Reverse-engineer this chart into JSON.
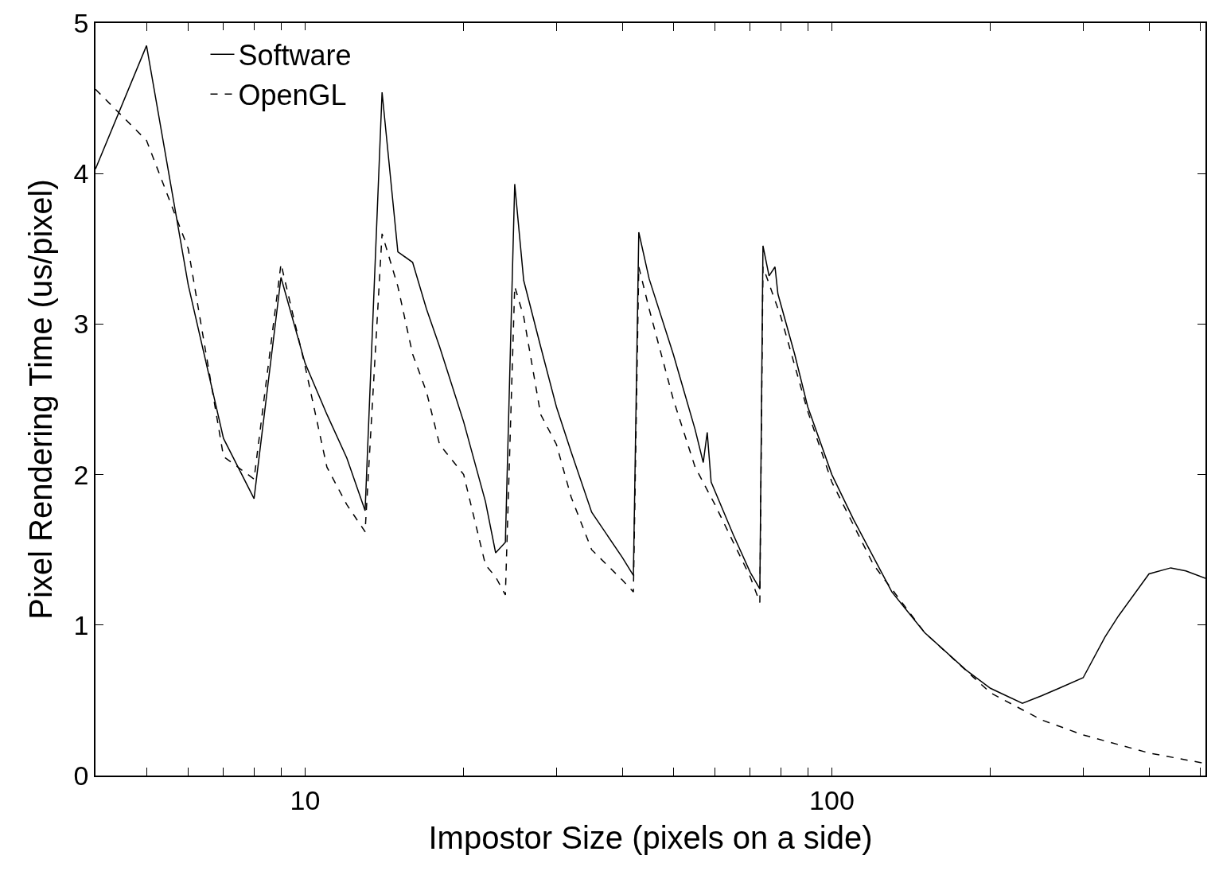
{
  "chart_data": {
    "type": "line",
    "xlabel": "Impostor Size (pixels on a side)",
    "ylabel": "Pixel Rendering Time (us/pixel)",
    "log": "x",
    "legend": "top left",
    "marker": "none",
    "xlim": [
      4,
      512
    ],
    "ylim": [
      0,
      5
    ],
    "xticks": [
      {
        "value": 4,
        "label": null
      },
      {
        "value": 5,
        "label": null
      },
      {
        "value": 6,
        "label": null
      },
      {
        "value": 7,
        "label": null
      },
      {
        "value": 8,
        "label": null
      },
      {
        "value": 9,
        "label": null
      },
      10,
      {
        "value": 20,
        "label": null
      },
      {
        "value": 30,
        "label": null
      },
      {
        "value": 40,
        "label": null
      },
      {
        "value": 50,
        "label": null
      },
      {
        "value": 60,
        "label": null
      },
      {
        "value": 70,
        "label": null
      },
      {
        "value": 80,
        "label": null
      },
      {
        "value": 90,
        "label": null
      },
      100,
      {
        "value": 200,
        "label": null
      },
      {
        "value": 300,
        "label": null
      },
      {
        "value": 400,
        "label": null
      },
      {
        "value": 500,
        "label": null
      }
    ],
    "yticks": [
      0,
      1,
      2,
      3,
      4,
      5
    ],
    "series": [
      {
        "name": "Software",
        "color": "#000000",
        "line_style": "solid",
        "x": [
          4,
          5,
          6,
          7,
          8,
          9,
          10,
          11,
          12,
          13,
          14,
          15,
          16,
          17,
          18,
          20,
          22,
          23,
          24,
          25,
          26,
          28,
          30,
          32,
          35,
          40,
          42,
          43,
          45,
          50,
          55,
          57,
          58,
          59,
          65,
          70,
          73,
          74,
          76,
          78,
          79,
          85,
          90,
          100,
          110,
          120,
          130,
          150,
          180,
          200,
          230,
          250,
          270,
          300,
          330,
          350,
          400,
          440,
          470,
          512
        ],
        "values": [
          4.03,
          4.85,
          3.26,
          2.24,
          1.84,
          3.31,
          2.74,
          2.4,
          2.11,
          1.76,
          4.54,
          3.48,
          3.41,
          3.1,
          2.85,
          2.35,
          1.82,
          1.48,
          1.55,
          3.93,
          3.29,
          2.85,
          2.45,
          2.15,
          1.75,
          1.45,
          1.33,
          3.61,
          3.3,
          2.8,
          2.3,
          2.08,
          2.28,
          1.95,
          1.6,
          1.35,
          1.24,
          3.52,
          3.32,
          3.38,
          3.2,
          2.8,
          2.45,
          2.0,
          1.7,
          1.45,
          1.22,
          0.95,
          0.7,
          0.58,
          0.48,
          0.53,
          0.58,
          0.65,
          0.92,
          1.06,
          1.34,
          1.38,
          1.36,
          1.31
        ]
      },
      {
        "name": "OpenGL",
        "color": "#000000",
        "line_style": "dashed",
        "x": [
          4,
          5,
          6,
          7,
          8,
          9,
          10,
          11,
          12,
          13,
          14,
          15,
          16,
          17,
          18,
          20,
          22,
          23,
          24,
          25,
          26,
          28,
          30,
          32,
          35,
          40,
          42,
          43,
          45,
          50,
          55,
          60,
          65,
          70,
          73,
          74,
          80,
          90,
          100,
          120,
          150,
          200,
          250,
          300,
          400,
          512
        ],
        "values": [
          4.56,
          4.22,
          3.5,
          2.12,
          1.97,
          3.4,
          2.72,
          2.05,
          1.8,
          1.62,
          3.6,
          3.25,
          2.8,
          2.55,
          2.2,
          2.0,
          1.4,
          1.32,
          1.2,
          3.25,
          3.05,
          2.4,
          2.2,
          1.85,
          1.5,
          1.3,
          1.22,
          3.38,
          3.1,
          2.5,
          2.05,
          1.8,
          1.55,
          1.32,
          1.15,
          3.38,
          3.05,
          2.42,
          1.95,
          1.4,
          0.95,
          0.55,
          0.37,
          0.27,
          0.15,
          0.08
        ]
      }
    ]
  }
}
